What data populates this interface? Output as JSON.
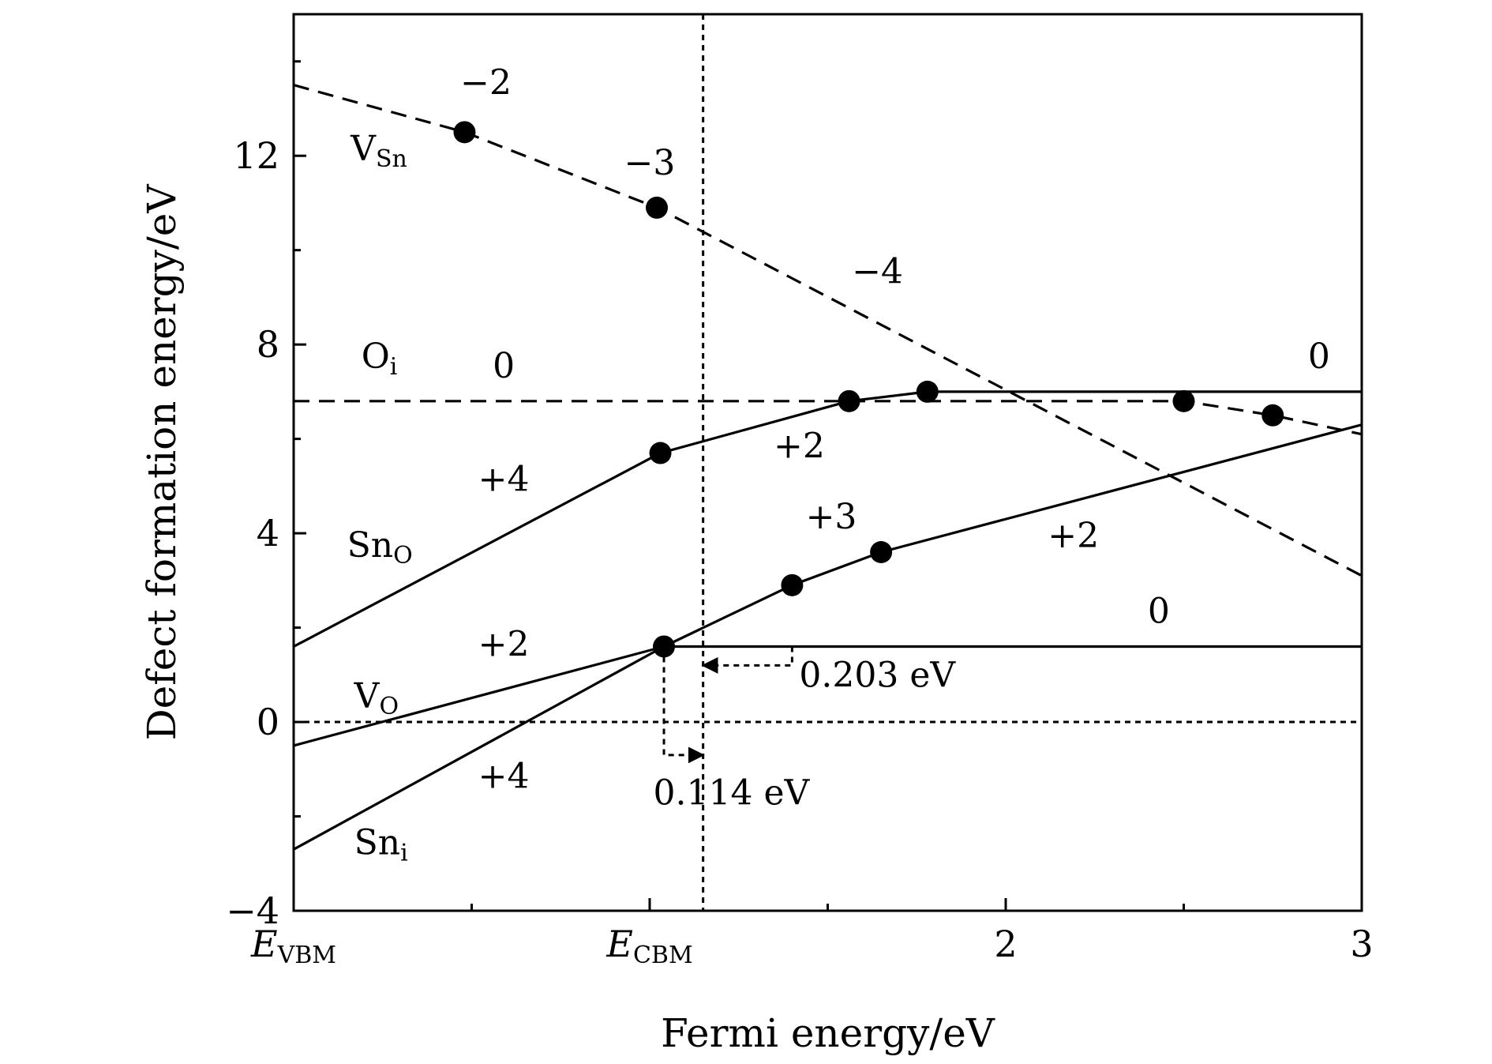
{
  "chart_data": {
    "type": "line",
    "xlabel": "Fermi energy/eV",
    "ylabel": "Defect formation energy/eV",
    "xlim": [
      0,
      3
    ],
    "ylim": [
      -4,
      15
    ],
    "x_ticks": [
      {
        "value": 0,
        "label": "E",
        "sub": "VBM",
        "italic": true
      },
      {
        "value": 1,
        "label": "E",
        "sub": "CBM",
        "italic": true
      },
      {
        "value": 2,
        "label": "2",
        "sub": "",
        "italic": false
      },
      {
        "value": 3,
        "label": "3",
        "sub": "",
        "italic": false
      }
    ],
    "y_ticks": [
      {
        "value": -4,
        "label": "−4"
      },
      {
        "value": 0,
        "label": "0"
      },
      {
        "value": 4,
        "label": "4"
      },
      {
        "value": 8,
        "label": "8"
      },
      {
        "value": 12,
        "label": "12"
      }
    ],
    "x_minor_ticks": [
      0.5,
      1.5,
      2.5
    ],
    "y_minor_ticks": [
      -2,
      2,
      6,
      10,
      14
    ],
    "grid": false,
    "series": [
      {
        "id": "v-sn",
        "style": "dashed",
        "x": [
          0,
          0.48,
          1.02,
          3.0
        ],
        "y": [
          13.5,
          12.5,
          10.9,
          3.1
        ]
      },
      {
        "id": "o-i",
        "style": "dashed",
        "x": [
          0,
          2.5,
          2.75,
          3.0
        ],
        "y": [
          6.8,
          6.8,
          6.5,
          6.1
        ]
      },
      {
        "id": "sn-o",
        "style": "solid",
        "x": [
          0,
          1.03,
          1.56,
          1.78,
          3.0
        ],
        "y": [
          1.6,
          5.7,
          6.8,
          7.0,
          7.0
        ]
      },
      {
        "id": "v-o",
        "style": "solid",
        "x": [
          0,
          1.04,
          3.0
        ],
        "y": [
          -0.5,
          1.6,
          1.6
        ]
      },
      {
        "id": "sn-i",
        "style": "solid",
        "x": [
          0,
          1.04,
          1.4,
          1.65,
          3.0
        ],
        "y": [
          -2.7,
          1.6,
          2.9,
          3.6,
          6.3
        ]
      }
    ],
    "transition_points": [
      {
        "x": 0.48,
        "y": 12.5
      },
      {
        "x": 1.02,
        "y": 10.9
      },
      {
        "x": 1.56,
        "y": 6.8
      },
      {
        "x": 1.78,
        "y": 7.0
      },
      {
        "x": 2.5,
        "y": 6.8
      },
      {
        "x": 2.75,
        "y": 6.5
      },
      {
        "x": 1.03,
        "y": 5.7
      },
      {
        "x": 1.04,
        "y": 1.6
      },
      {
        "x": 1.4,
        "y": 2.9
      },
      {
        "x": 1.65,
        "y": 3.6
      }
    ],
    "reference_lines": {
      "zero_energy": 0,
      "vertical_x": 1.15
    },
    "defect_labels": [
      {
        "main": "V",
        "sub": "Sn",
        "x": 0.16,
        "y": 11.9
      },
      {
        "main": "O",
        "sub": "i",
        "x": 0.19,
        "y": 7.5
      },
      {
        "main": "Sn",
        "sub": "O",
        "x": 0.15,
        "y": 3.5
      },
      {
        "main": "V",
        "sub": "O",
        "x": 0.17,
        "y": 0.3
      },
      {
        "main": "Sn",
        "sub": "i",
        "x": 0.17,
        "y": -2.8
      }
    ],
    "charge_labels": [
      {
        "text": "−2",
        "x": 0.54,
        "y": 13.3
      },
      {
        "text": "−3",
        "x": 1.0,
        "y": 11.6
      },
      {
        "text": "−4",
        "x": 1.64,
        "y": 9.3
      },
      {
        "text": "0",
        "x": 0.59,
        "y": 7.3
      },
      {
        "text": "0",
        "x": 2.88,
        "y": 7.5
      },
      {
        "text": "+2",
        "x": 1.42,
        "y": 5.6
      },
      {
        "text": "+4",
        "x": 0.59,
        "y": 4.9
      },
      {
        "text": "+3",
        "x": 1.51,
        "y": 4.1
      },
      {
        "text": "+2",
        "x": 2.19,
        "y": 3.7
      },
      {
        "text": "0",
        "x": 2.43,
        "y": 2.1
      },
      {
        "text": "+2",
        "x": 0.59,
        "y": 1.4
      },
      {
        "text": "+4",
        "x": 0.59,
        "y": -1.4
      }
    ],
    "annotations": [
      {
        "text": "0.203 eV",
        "x": 1.42,
        "y": 0.75,
        "arrow_from": [
          1.4,
          1.6
        ],
        "arrow_corner": [
          1.4,
          1.2
        ],
        "arrow_to": [
          1.15,
          1.2
        ]
      },
      {
        "text": "0.114 eV",
        "x": 1.01,
        "y": -1.75,
        "arrow_from": [
          1.04,
          1.6
        ],
        "arrow_corner": [
          1.04,
          -0.7
        ],
        "arrow_to": [
          1.15,
          -0.7
        ]
      }
    ]
  }
}
